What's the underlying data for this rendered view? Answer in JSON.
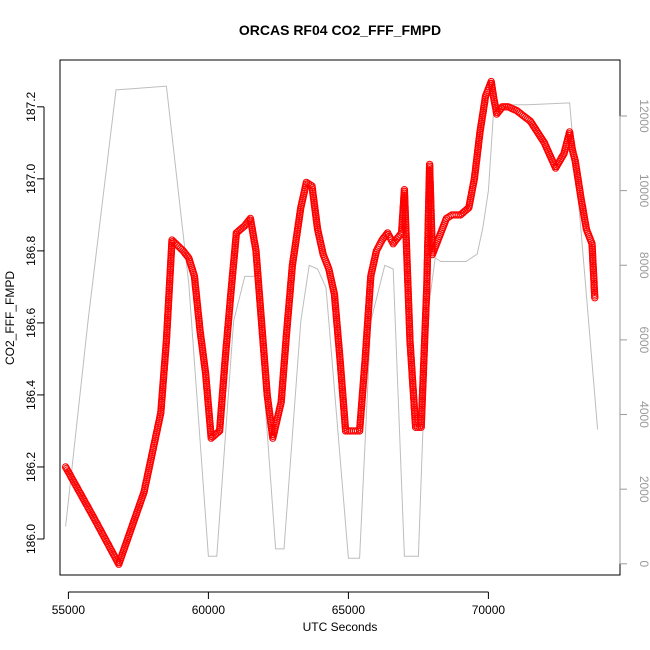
{
  "chart_data": {
    "type": "scatter",
    "title": "ORCAS RF04 CO2_FFF_FMPD",
    "xlabel": "UTC Seconds",
    "ylabel": "CO2_FFF_FMPD",
    "xlim": [
      54700,
      74700
    ],
    "ylim": [
      185.9,
      187.33
    ],
    "y2lim": [
      -300,
      13500
    ],
    "xticks": [
      55000,
      60000,
      65000,
      70000
    ],
    "yticks": [
      "186.0",
      "186.2",
      "186.4",
      "186.6",
      "186.8",
      "187.0",
      "187.2"
    ],
    "y2ticks": [
      0,
      2000,
      4000,
      6000,
      8000,
      10000,
      12000
    ],
    "grid": false,
    "colors": {
      "points": "#ff0000",
      "altitude": "#bdbdbd"
    },
    "series": [
      {
        "role": "points",
        "axis": "left",
        "x": [
          54900,
          55900,
          56800,
          57700,
          58300,
          58500,
          58700,
          59100,
          59300,
          59500,
          59700,
          59900,
          60100,
          60400,
          60600,
          60800,
          61000,
          61300,
          61500,
          61700,
          61900,
          62100,
          62300,
          62600,
          62800,
          63000,
          63300,
          63500,
          63700,
          63900,
          64100,
          64300,
          64500,
          64700,
          64900,
          65100,
          65400,
          65600,
          65800,
          66000,
          66200,
          66400,
          66600,
          66800,
          66900,
          67000,
          67200,
          67400,
          67600,
          67800,
          67900,
          68000,
          68100,
          68300,
          68500,
          68700,
          69000,
          69300,
          69500,
          69700,
          69900,
          70100,
          70200,
          70300,
          70500,
          70700,
          71000,
          71500,
          72000,
          72400,
          72700,
          72900,
          73000,
          73100,
          73300,
          73500,
          73700,
          73800
        ],
        "y": [
          186.2,
          186.06,
          185.93,
          186.13,
          186.35,
          186.55,
          186.83,
          186.8,
          186.78,
          186.73,
          186.58,
          186.46,
          186.28,
          186.3,
          186.5,
          186.68,
          186.85,
          186.87,
          186.89,
          186.8,
          186.6,
          186.4,
          186.28,
          186.38,
          186.58,
          186.76,
          186.92,
          186.99,
          186.98,
          186.86,
          186.79,
          186.75,
          186.68,
          186.5,
          186.3,
          186.3,
          186.3,
          186.5,
          186.73,
          186.8,
          186.83,
          186.85,
          186.82,
          186.84,
          186.85,
          186.97,
          186.55,
          186.31,
          186.31,
          186.7,
          187.04,
          186.79,
          186.81,
          186.85,
          186.89,
          186.9,
          186.9,
          186.92,
          187.0,
          187.13,
          187.23,
          187.27,
          187.22,
          187.18,
          187.2,
          187.2,
          187.19,
          187.16,
          187.1,
          187.03,
          187.07,
          187.13,
          187.08,
          187.05,
          186.95,
          186.86,
          186.82,
          186.67
        ]
      },
      {
        "role": "altitude",
        "axis": "right",
        "x": [
          54900,
          55700,
          56700,
          58500,
          59300,
          60000,
          60300,
          60900,
          61300,
          61700,
          62400,
          62700,
          63300,
          63600,
          63900,
          64200,
          65000,
          65400,
          65800,
          66300,
          66600,
          67000,
          67500,
          67800,
          68100,
          68300,
          68800,
          69200,
          69600,
          69800,
          70000,
          70200,
          71400,
          72900,
          73300,
          73900
        ],
        "y": [
          1000,
          6500,
          12700,
          12800,
          7500,
          200,
          200,
          6500,
          7700,
          7700,
          400,
          400,
          6500,
          8000,
          7900,
          7400,
          150,
          150,
          6500,
          8000,
          7900,
          200,
          200,
          6500,
          8200,
          8100,
          8100,
          8100,
          8300,
          9000,
          10000,
          12300,
          12300,
          12350,
          9000,
          3600
        ]
      }
    ]
  }
}
